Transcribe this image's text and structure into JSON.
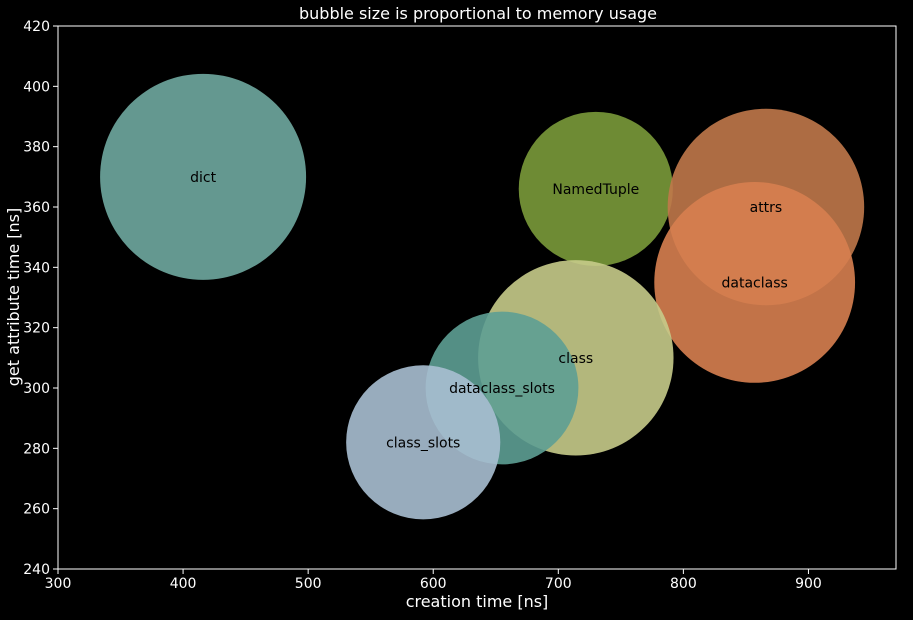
{
  "chart_data": {
    "type": "scatter",
    "title": "bubble size is proportional to memory usage",
    "xlabel": "creation time [ns]",
    "ylabel": "get attribute time [ns]",
    "xlim": [
      300,
      970
    ],
    "ylim": [
      240,
      420
    ],
    "xticks": [
      300,
      400,
      500,
      600,
      700,
      800,
      900
    ],
    "yticks": [
      240,
      260,
      280,
      300,
      320,
      340,
      360,
      380,
      400,
      420
    ],
    "grid": false,
    "bubble_size_meaning": "memory usage",
    "points": [
      {
        "label": "dict",
        "x": 416,
        "y": 370,
        "size": 1.0,
        "color": "#6fa8a0"
      },
      {
        "label": "NamedTuple",
        "x": 730,
        "y": 366,
        "size": 0.56,
        "color": "#7a9a3a"
      },
      {
        "label": "attrs",
        "x": 866,
        "y": 360,
        "size": 0.91,
        "color": "#c0784a"
      },
      {
        "label": "dataclass",
        "x": 857,
        "y": 335,
        "size": 0.95,
        "color": "#d77f50"
      },
      {
        "label": "class",
        "x": 714,
        "y": 310,
        "size": 0.9,
        "color": "#c6cb8a"
      },
      {
        "label": "dataclass_slots",
        "x": 655,
        "y": 300,
        "size": 0.55,
        "color": "#5d9e94"
      },
      {
        "label": "class_slots",
        "x": 592,
        "y": 282,
        "size": 0.56,
        "color": "#a9bfd1"
      }
    ]
  }
}
